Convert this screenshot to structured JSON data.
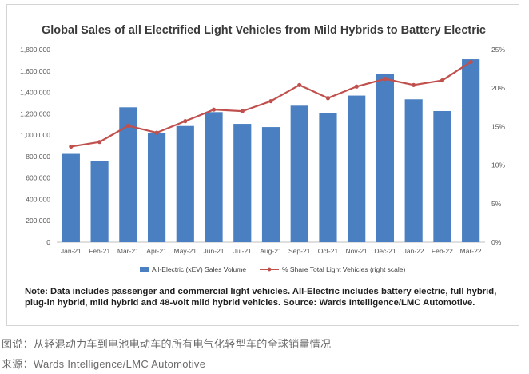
{
  "chart_data": {
    "type": "bar",
    "title": "Global Sales of all Electrified Light Vehicles from Mild Hybrids to Battery Electric",
    "categories": [
      "Jan-21",
      "Feb-21",
      "Mar-21",
      "Apr-21",
      "May-21",
      "Jun-21",
      "Jul-21",
      "Aug-21",
      "Sep-21",
      "Oct-21",
      "Nov-21",
      "Dec-21",
      "Jan-22",
      "Feb-22",
      "Mar-22"
    ],
    "series": [
      {
        "name": "All-Electric (xEV) Sales Volume",
        "type": "bar",
        "axis": "left",
        "color": "#4a7fc1",
        "values": [
          825000,
          760000,
          1260000,
          1020000,
          1085000,
          1215000,
          1105000,
          1075000,
          1275000,
          1210000,
          1370000,
          1570000,
          1335000,
          1225000,
          1710000
        ]
      },
      {
        "name": "% Share Total Light Vehicles (right scale)",
        "type": "line",
        "axis": "right",
        "color": "#c0504d",
        "values": [
          12.4,
          13.0,
          15.1,
          14.2,
          15.7,
          17.2,
          17.0,
          18.3,
          20.4,
          18.7,
          20.2,
          21.2,
          20.4,
          21.0,
          23.4
        ]
      }
    ],
    "y_left": {
      "ylim": [
        0,
        1800000
      ],
      "ticks": [
        "0",
        "200,000",
        "400,000",
        "600,000",
        "800,000",
        "1,000,000",
        "1,200,000",
        "1,400,000",
        "1,600,000",
        "1,800,000"
      ]
    },
    "y_right": {
      "ylim": [
        0,
        25
      ],
      "ticks": [
        "0%",
        "5%",
        "10%",
        "15%",
        "20%",
        "25%"
      ]
    }
  },
  "note": "Note: Data includes passenger and commercial light vehicles. All-Electric includes battery electric, full hybrid, plug-in hybrid, mild hybrid and 48-volt mild hybrid vehicles. Source: Wards Intelligence/LMC Automotive.",
  "caption": "图说：从轻混动力车到电池电动车的所有电气化轻型车的全球销量情况",
  "source": "来源：Wards Intelligence/LMC Automotive"
}
